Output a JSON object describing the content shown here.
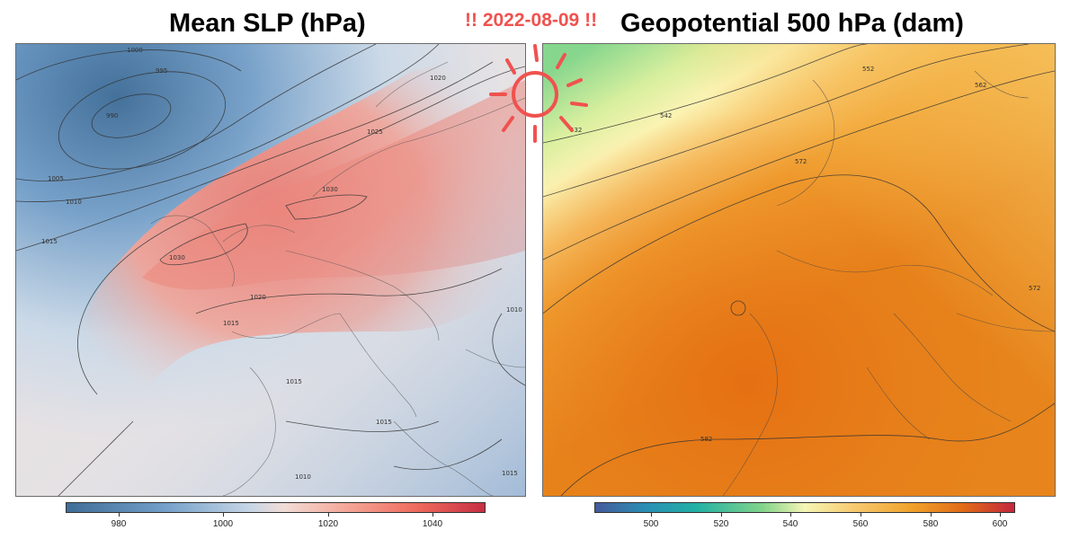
{
  "titles": {
    "left": "Mean SLP (hPa)",
    "right": "Geopotential 500 hPa (dam)",
    "date_banner": "!! 2022-08-09 !!"
  },
  "colorbars": {
    "slp": {
      "ticks": [
        "980",
        "1000",
        "1020",
        "1040"
      ],
      "min": 970,
      "max": 1050
    },
    "z500": {
      "ticks": [
        "500",
        "520",
        "540",
        "560",
        "580",
        "600"
      ],
      "min": 484,
      "max": 604
    }
  },
  "contour_labels": {
    "slp": [
      "1000",
      "995",
      "990",
      "1005",
      "1010",
      "1015",
      "1020",
      "1025",
      "1030",
      "1030",
      "1020",
      "1015",
      "1015",
      "1015",
      "1010",
      "1015",
      "1010"
    ],
    "z500": [
      "552",
      "542",
      "532",
      "562",
      "572",
      "572",
      "582"
    ]
  },
  "colors": {
    "date_banner": "#f0524f",
    "slp_low": "#3f6d97",
    "slp_high": "#c62f43",
    "z500_low": "#455a9b",
    "z500_high": "#c3273d"
  },
  "icons": [
    "sun-icon"
  ]
}
